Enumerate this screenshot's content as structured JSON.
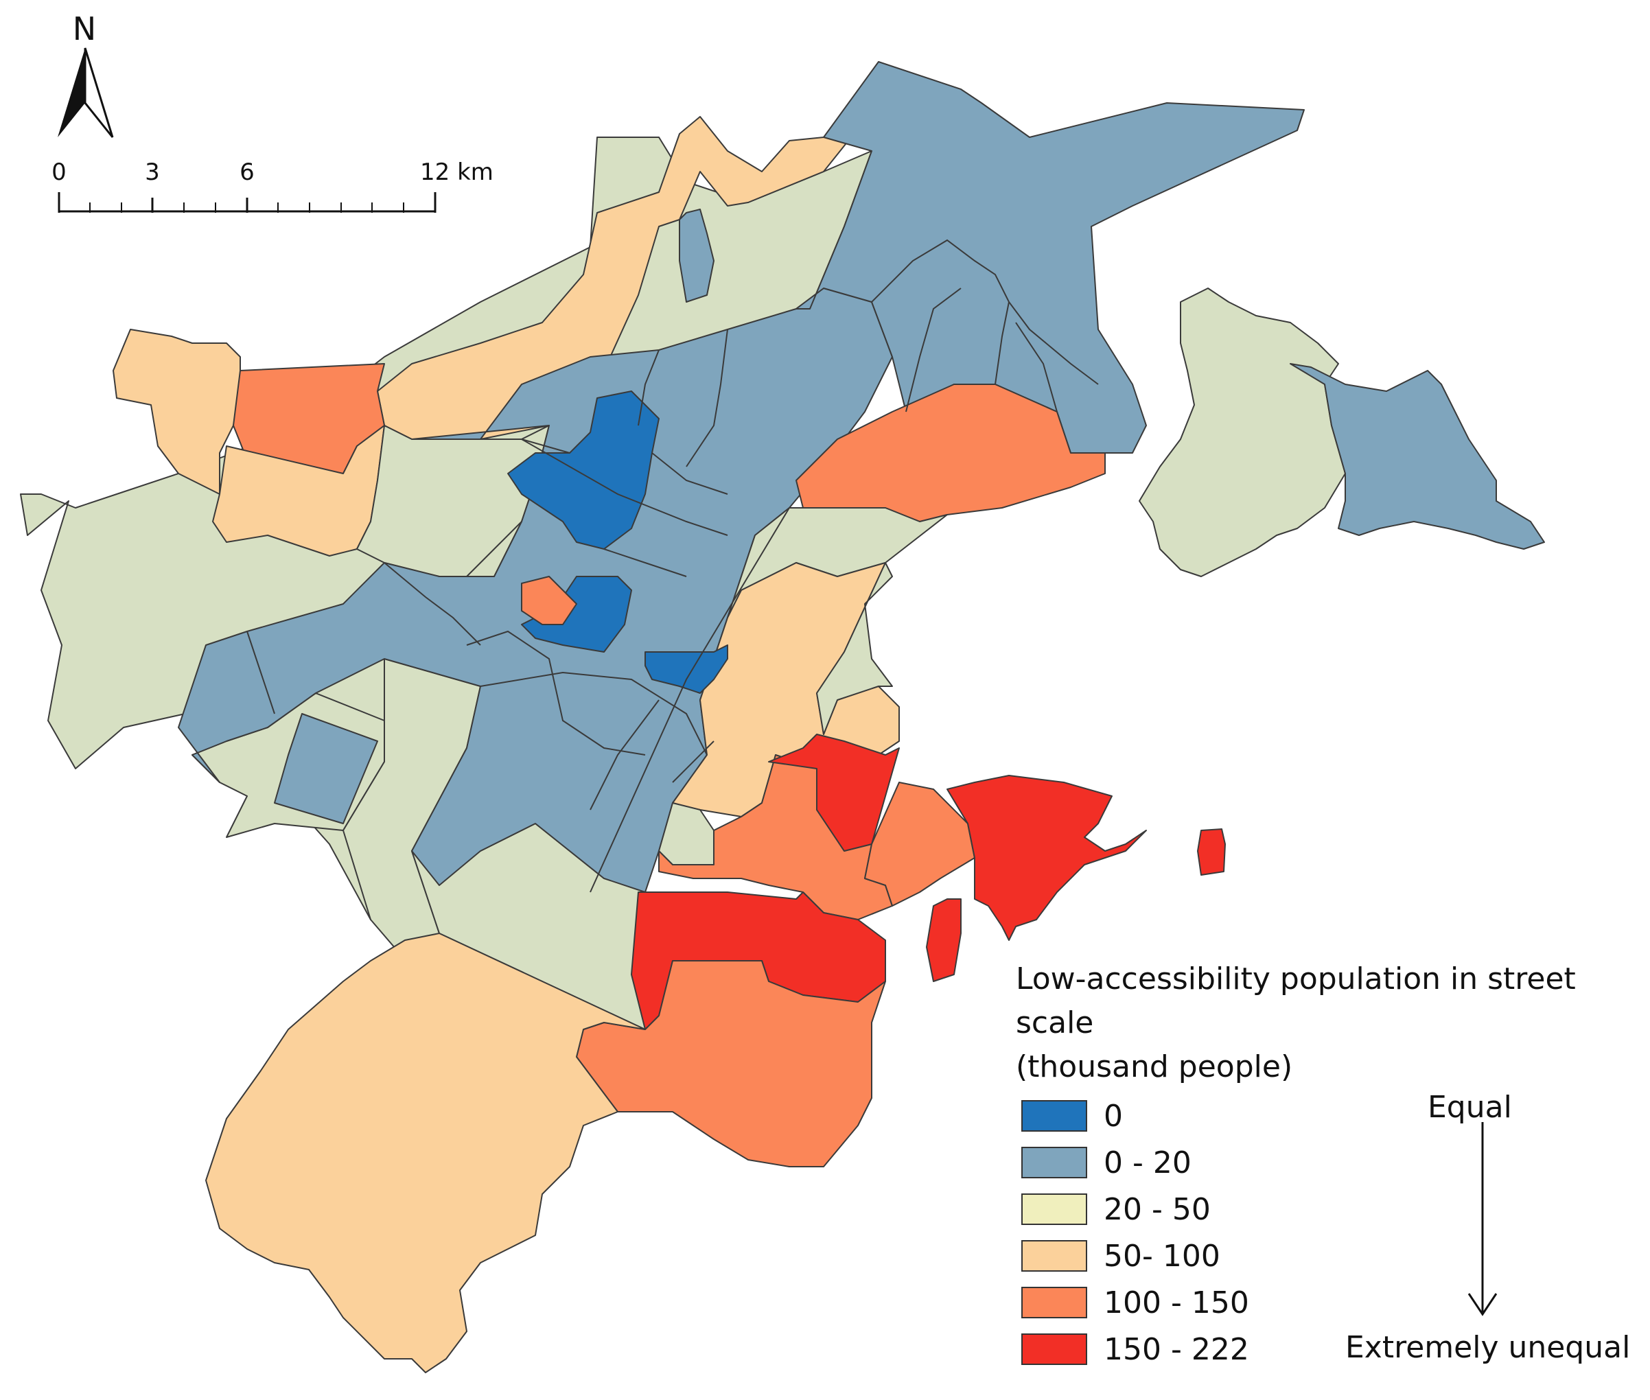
{
  "north_arrow": {
    "label": "N"
  },
  "scale_bar": {
    "ticks": [
      "0",
      "3",
      "6"
    ],
    "end_label": "12 km"
  },
  "legend": {
    "title_line1": "Low-accessibility  population in street",
    "title_line2": "scale",
    "title_line3": "(thousand people)",
    "classes": [
      {
        "label": "0",
        "color": "#1f74bb"
      },
      {
        "label": "0 - 20",
        "color": "#7fa5bd"
      },
      {
        "label": "20 - 50",
        "color": "#f0efbd"
      },
      {
        "label": "50- 100",
        "color": "#fbd19b"
      },
      {
        "label": "100 - 150",
        "color": "#fb8658"
      },
      {
        "label": "150 - 222",
        "color": "#f22f26"
      }
    ]
  },
  "gradient_scale": {
    "top_label": "Equal",
    "bottom_label": "Extremely unequal"
  },
  "region_colors": {
    "dark_blue": "#1f74bb",
    "blue": "#7fa5bd",
    "green": "#d7e0c3",
    "peach": "#fbd19b",
    "orange": "#fb8658",
    "red": "#f22f26"
  }
}
